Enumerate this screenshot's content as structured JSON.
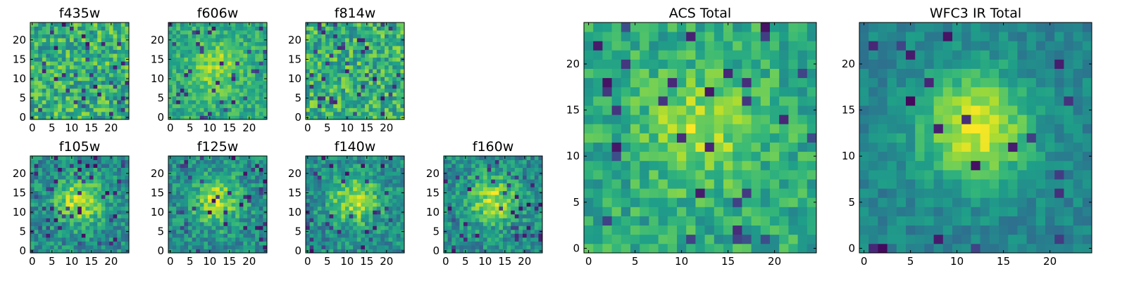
{
  "chart_data": [
    {
      "type": "heatmap",
      "title": "f435w",
      "xticks": [
        "0",
        "5",
        "10",
        "15",
        "20"
      ],
      "yticks": [
        "0",
        "5",
        "10",
        "15",
        "20"
      ],
      "xlim": [
        0,
        24
      ],
      "ylim": [
        0,
        24
      ],
      "colormap": "viridis",
      "pattern": "noise",
      "seed": 11
    },
    {
      "type": "heatmap",
      "title": "f606w",
      "xticks": [
        "0",
        "5",
        "10",
        "15",
        "20"
      ],
      "yticks": [
        "0",
        "5",
        "10",
        "15",
        "20"
      ],
      "xlim": [
        0,
        24
      ],
      "ylim": [
        0,
        24
      ],
      "colormap": "viridis",
      "pattern": "noise-center",
      "seed": 23
    },
    {
      "type": "heatmap",
      "title": "f814w",
      "xticks": [
        "0",
        "5",
        "10",
        "15",
        "20"
      ],
      "yticks": [
        "0",
        "5",
        "10",
        "15",
        "20"
      ],
      "xlim": [
        0,
        24
      ],
      "ylim": [
        0,
        24
      ],
      "colormap": "viridis",
      "pattern": "noise",
      "seed": 37
    },
    {
      "type": "heatmap",
      "title": "f105w",
      "xticks": [
        "0",
        "5",
        "10",
        "15",
        "20"
      ],
      "yticks": [
        "0",
        "5",
        "10",
        "15",
        "20"
      ],
      "xlim": [
        0,
        24
      ],
      "ylim": [
        0,
        24
      ],
      "colormap": "viridis",
      "pattern": "blob",
      "seed": 41
    },
    {
      "type": "heatmap",
      "title": "f125w",
      "xticks": [
        "0",
        "5",
        "10",
        "15",
        "20"
      ],
      "yticks": [
        "0",
        "5",
        "10",
        "15",
        "20"
      ],
      "xlim": [
        0,
        24
      ],
      "ylim": [
        0,
        24
      ],
      "colormap": "viridis",
      "pattern": "blob",
      "seed": 53
    },
    {
      "type": "heatmap",
      "title": "f140w",
      "xticks": [
        "0",
        "5",
        "10",
        "15",
        "20"
      ],
      "yticks": [
        "0",
        "5",
        "10",
        "15",
        "20"
      ],
      "xlim": [
        0,
        24
      ],
      "ylim": [
        0,
        24
      ],
      "colormap": "viridis",
      "pattern": "blob",
      "seed": 67
    },
    {
      "type": "heatmap",
      "title": "f160w",
      "xticks": [
        "0",
        "5",
        "10",
        "15",
        "20"
      ],
      "yticks": [
        "0",
        "5",
        "10",
        "15",
        "20"
      ],
      "xlim": [
        0,
        24
      ],
      "ylim": [
        0,
        24
      ],
      "colormap": "viridis",
      "pattern": "blob",
      "seed": 79
    },
    {
      "type": "heatmap",
      "title": "ACS Total",
      "xticks": [
        "0",
        "5",
        "10",
        "15",
        "20"
      ],
      "yticks": [
        "0",
        "5",
        "10",
        "15",
        "20"
      ],
      "xlim": [
        0,
        24
      ],
      "ylim": [
        0,
        24
      ],
      "colormap": "viridis",
      "pattern": "noise-center",
      "seed": 83
    },
    {
      "type": "heatmap",
      "title": "WFC3 IR Total",
      "xticks": [
        "0",
        "5",
        "10",
        "15",
        "20"
      ],
      "yticks": [
        "0",
        "5",
        "10",
        "15",
        "20"
      ],
      "xlim": [
        0,
        24
      ],
      "ylim": [
        0,
        24
      ],
      "colormap": "viridis",
      "pattern": "blob-strong",
      "seed": 97
    }
  ]
}
